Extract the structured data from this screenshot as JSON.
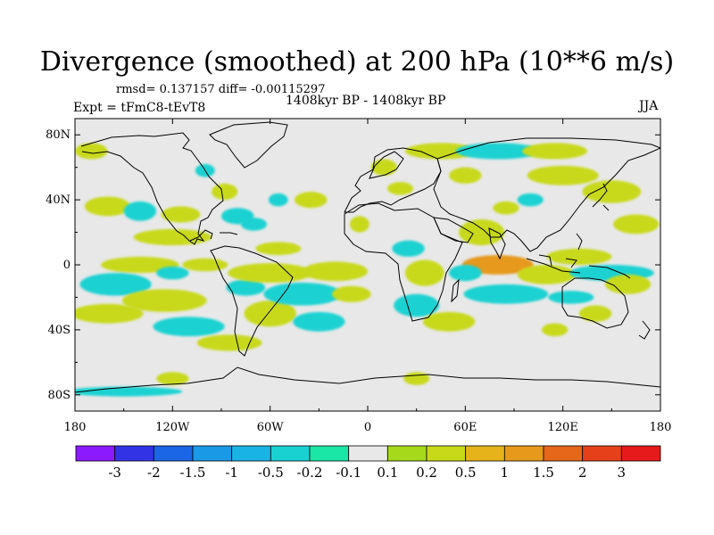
{
  "title": "Divergence (smoothed) at 200 hPa (10**6 m/s)",
  "stats": {
    "rmsd_label": "rmsd=",
    "rmsd": "0.137157",
    "diff_label": "diff=",
    "diff": "-0.00115297"
  },
  "subtitle_center": "1408kyr BP - 1408kyr BP",
  "experiment": "Expt = tFmC8-tEvT8",
  "season": "JJA",
  "map": {
    "background": "#e8e8e8",
    "lat_ticks": [
      "80N",
      "40N",
      "0",
      "40S",
      "80S"
    ],
    "lat_values": [
      80,
      40,
      0,
      -40,
      -80
    ],
    "lon_ticks": [
      "180",
      "120W",
      "60W",
      "0",
      "60E",
      "120E",
      "180"
    ],
    "lon_values": [
      -180,
      -120,
      -60,
      0,
      60,
      120,
      180
    ]
  },
  "colorbar": {
    "colors": [
      "#8c1aff",
      "#3333e6",
      "#1a66e6",
      "#1a99e6",
      "#1ab3e6",
      "#1ad1d1",
      "#1ae6a6",
      "#e8e8e8",
      "#a6d91a",
      "#c8d91a",
      "#e6b31a",
      "#e6991a",
      "#e6661a",
      "#e6401a",
      "#e61a1a"
    ],
    "labels": [
      "-3",
      "-2",
      "-1.5",
      "-1",
      "-0.5",
      "-0.2",
      "-0.1",
      "0.1",
      "0.2",
      "0.5",
      "1",
      "1.5",
      "2",
      "3"
    ]
  },
  "chart_data": {
    "type": "heatmap",
    "title": "Divergence (smoothed) at 200 hPa (10**6 m/s)",
    "projection": "cylindrical equidistant",
    "lon_range": [
      -180,
      180
    ],
    "lat_range": [
      -90,
      90
    ],
    "levels": [
      -3,
      -2,
      -1.5,
      -1,
      -0.5,
      -0.2,
      -0.1,
      0.1,
      0.2,
      0.5,
      1,
      1.5,
      2,
      3
    ],
    "blobs": [
      {
        "lon": -170,
        "lat": 70,
        "w": 10,
        "h": 5,
        "value": 0.3
      },
      {
        "lon": -160,
        "lat": 36,
        "w": 14,
        "h": 6,
        "value": 0.3
      },
      {
        "lon": -140,
        "lat": 33,
        "w": 10,
        "h": 6,
        "value": -0.3
      },
      {
        "lon": -115,
        "lat": 31,
        "w": 12,
        "h": 5,
        "value": 0.3
      },
      {
        "lon": -120,
        "lat": 17,
        "w": 24,
        "h": 5,
        "value": 0.3
      },
      {
        "lon": -140,
        "lat": 0,
        "w": 24,
        "h": 5,
        "value": 0.3
      },
      {
        "lon": -155,
        "lat": -12,
        "w": 22,
        "h": 7,
        "value": -0.3
      },
      {
        "lon": -125,
        "lat": -22,
        "w": 26,
        "h": 7,
        "value": 0.3
      },
      {
        "lon": -160,
        "lat": -30,
        "w": 22,
        "h": 6,
        "value": 0.3
      },
      {
        "lon": -120,
        "lat": -5,
        "w": 10,
        "h": 4,
        "value": -0.3
      },
      {
        "lon": -100,
        "lat": 0,
        "w": 14,
        "h": 4,
        "value": 0.3
      },
      {
        "lon": -75,
        "lat": -14,
        "w": 12,
        "h": 5,
        "value": -0.3
      },
      {
        "lon": -60,
        "lat": -30,
        "w": 16,
        "h": 8,
        "value": 0.3
      },
      {
        "lon": -110,
        "lat": -38,
        "w": 22,
        "h": 6,
        "value": -0.3
      },
      {
        "lon": -85,
        "lat": -48,
        "w": 20,
        "h": 5,
        "value": 0.3
      },
      {
        "lon": -120,
        "lat": -70,
        "w": 10,
        "h": 4,
        "value": 0.3
      },
      {
        "lon": -150,
        "lat": -78,
        "w": 36,
        "h": 3,
        "value": -0.3
      },
      {
        "lon": -100,
        "lat": 58,
        "w": 6,
        "h": 4,
        "value": -0.3
      },
      {
        "lon": -88,
        "lat": 45,
        "w": 8,
        "h": 5,
        "value": 0.3
      },
      {
        "lon": -80,
        "lat": 30,
        "w": 10,
        "h": 5,
        "value": -0.3
      },
      {
        "lon": -70,
        "lat": 25,
        "w": 8,
        "h": 4,
        "value": -0.3
      },
      {
        "lon": -55,
        "lat": 40,
        "w": 6,
        "h": 4,
        "value": -0.3
      },
      {
        "lon": -55,
        "lat": 10,
        "w": 14,
        "h": 4,
        "value": 0.3
      },
      {
        "lon": -60,
        "lat": -5,
        "w": 26,
        "h": 6,
        "value": 0.3
      },
      {
        "lon": -40,
        "lat": -18,
        "w": 24,
        "h": 7,
        "value": -0.3
      },
      {
        "lon": -20,
        "lat": -4,
        "w": 20,
        "h": 6,
        "value": 0.3
      },
      {
        "lon": -30,
        "lat": -35,
        "w": 16,
        "h": 6,
        "value": -0.3
      },
      {
        "lon": -10,
        "lat": -18,
        "w": 12,
        "h": 5,
        "value": 0.3
      },
      {
        "lon": -35,
        "lat": 40,
        "w": 10,
        "h": 5,
        "value": 0.3
      },
      {
        "lon": -5,
        "lat": 25,
        "w": 6,
        "h": 5,
        "value": 0.3
      },
      {
        "lon": 10,
        "lat": 60,
        "w": 8,
        "h": 5,
        "value": 0.3
      },
      {
        "lon": 20,
        "lat": 47,
        "w": 8,
        "h": 4,
        "value": 0.3
      },
      {
        "lon": 25,
        "lat": 10,
        "w": 10,
        "h": 5,
        "value": -0.3
      },
      {
        "lon": 35,
        "lat": -5,
        "w": 12,
        "h": 8,
        "value": 0.3
      },
      {
        "lon": 30,
        "lat": -25,
        "w": 14,
        "h": 7,
        "value": -0.3
      },
      {
        "lon": 50,
        "lat": -35,
        "w": 16,
        "h": 6,
        "value": 0.3
      },
      {
        "lon": 45,
        "lat": 70,
        "w": 22,
        "h": 5,
        "value": 0.3
      },
      {
        "lon": 80,
        "lat": 70,
        "w": 26,
        "h": 5,
        "value": -0.3
      },
      {
        "lon": 115,
        "lat": 70,
        "w": 20,
        "h": 5,
        "value": 0.3
      },
      {
        "lon": 60,
        "lat": 55,
        "w": 10,
        "h": 5,
        "value": 0.3
      },
      {
        "lon": 120,
        "lat": 55,
        "w": 22,
        "h": 6,
        "value": 0.3
      },
      {
        "lon": 150,
        "lat": 45,
        "w": 18,
        "h": 7,
        "value": 0.3
      },
      {
        "lon": 165,
        "lat": 25,
        "w": 14,
        "h": 6,
        "value": 0.3
      },
      {
        "lon": 100,
        "lat": 40,
        "w": 8,
        "h": 4,
        "value": -0.3
      },
      {
        "lon": 85,
        "lat": 35,
        "w": 8,
        "h": 4,
        "value": 0.3
      },
      {
        "lon": 70,
        "lat": 20,
        "w": 14,
        "h": 8,
        "value": 0.3
      },
      {
        "lon": 80,
        "lat": 0,
        "w": 22,
        "h": 6,
        "value": 1.2
      },
      {
        "lon": 60,
        "lat": -5,
        "w": 10,
        "h": 5,
        "value": -0.3
      },
      {
        "lon": 85,
        "lat": -18,
        "w": 26,
        "h": 6,
        "value": -0.3
      },
      {
        "lon": 110,
        "lat": -6,
        "w": 18,
        "h": 6,
        "value": 0.3
      },
      {
        "lon": 130,
        "lat": 5,
        "w": 20,
        "h": 5,
        "value": 0.3
      },
      {
        "lon": 150,
        "lat": -5,
        "w": 26,
        "h": 5,
        "value": -0.3
      },
      {
        "lon": 125,
        "lat": -20,
        "w": 14,
        "h": 4,
        "value": -0.3
      },
      {
        "lon": 140,
        "lat": -30,
        "w": 10,
        "h": 5,
        "value": 0.3
      },
      {
        "lon": 115,
        "lat": -40,
        "w": 8,
        "h": 4,
        "value": 0.3
      },
      {
        "lon": 160,
        "lat": -12,
        "w": 14,
        "h": 6,
        "value": 0.3
      },
      {
        "lon": 30,
        "lat": -70,
        "w": 8,
        "h": 4,
        "value": 0.3
      }
    ]
  }
}
